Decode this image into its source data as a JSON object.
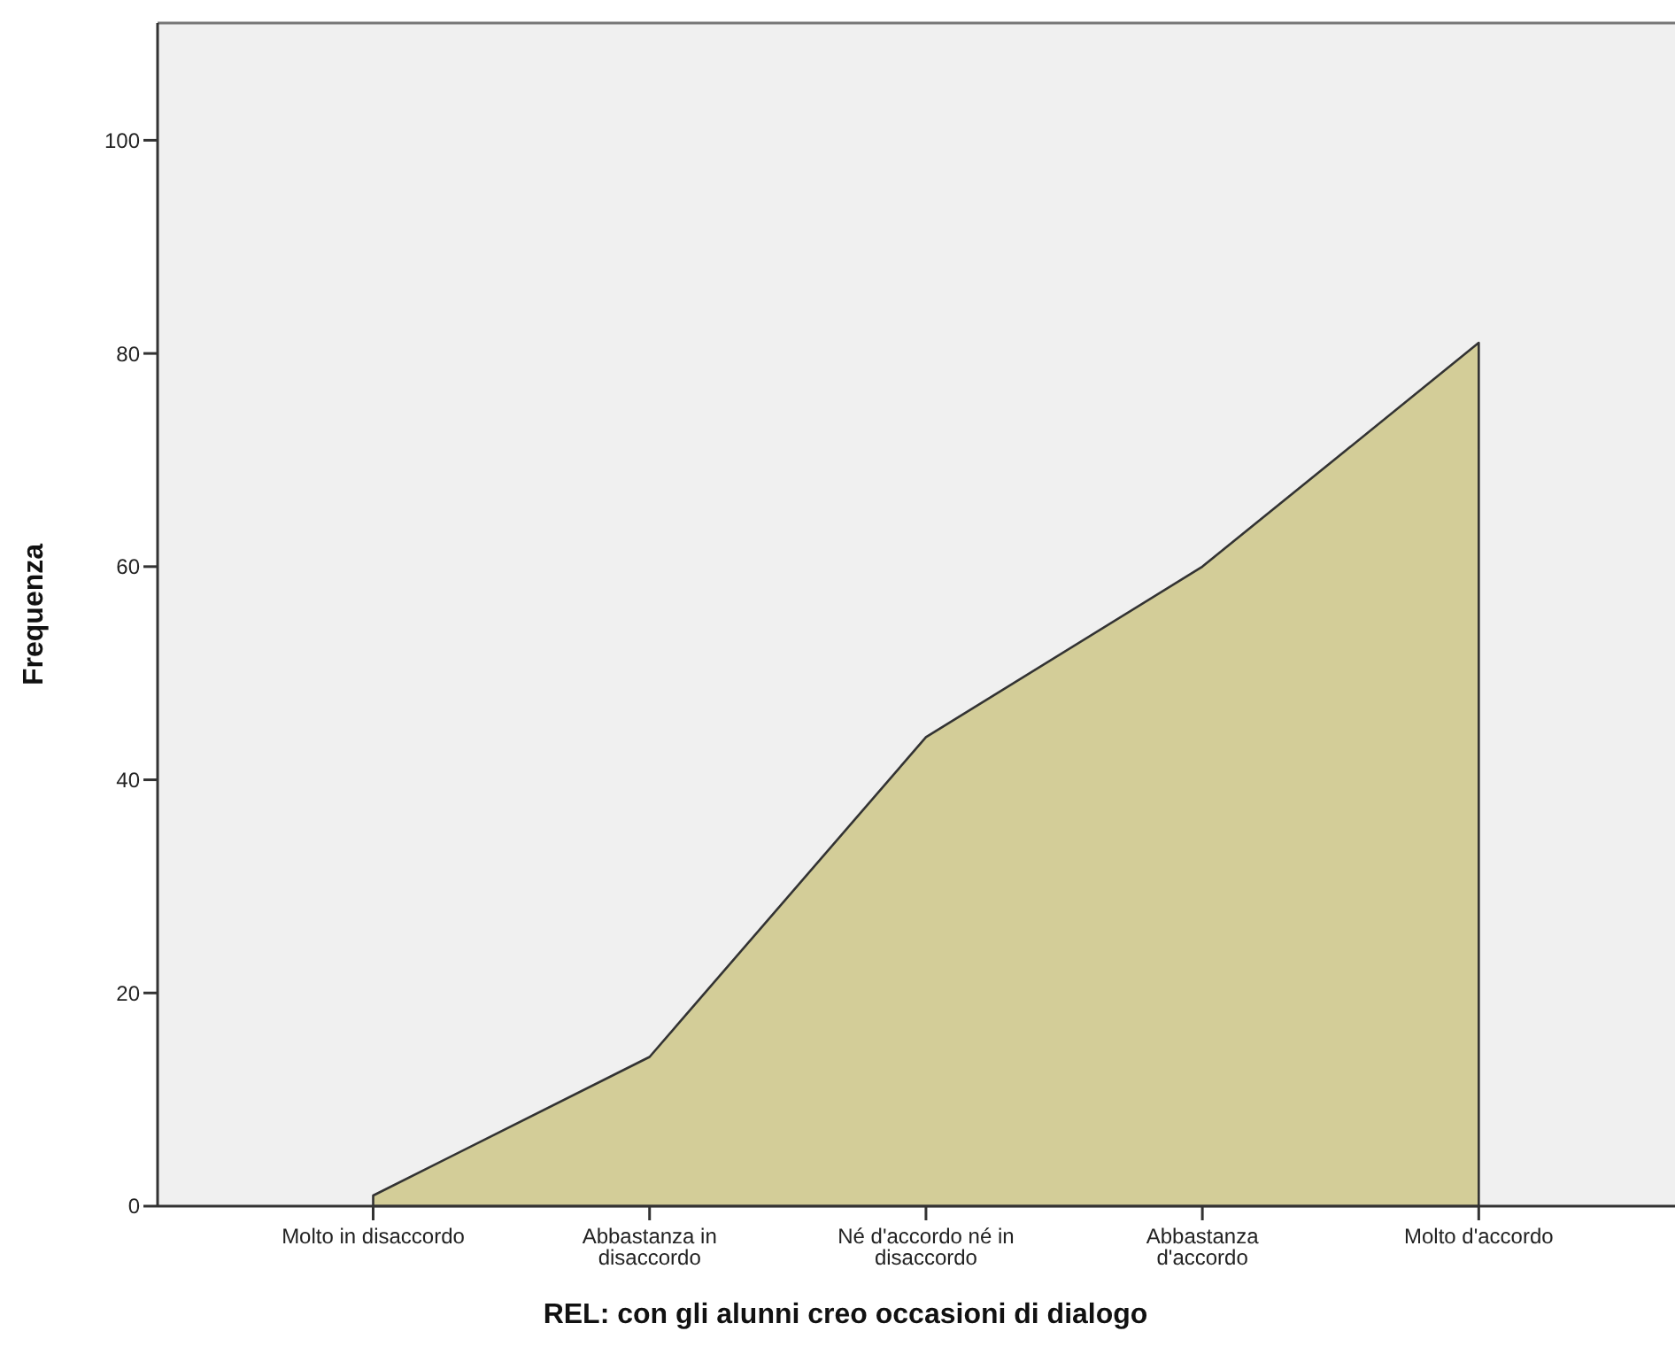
{
  "chart_data": {
    "type": "area",
    "xlabel": "REL: con gli alunni creo occasioni di dialogo",
    "ylabel": "Frequenza",
    "categories": [
      "Molto in disaccordo",
      "Abbastanza in disaccordo",
      "Né d'accordo né in disaccordo",
      "Abbastanza d'accordo",
      "Molto d'accordo"
    ],
    "values": [
      1,
      14,
      44,
      60,
      81
    ],
    "color": "#d3cd98",
    "ylim": [
      0,
      111
    ],
    "yticks": [
      0,
      20,
      40,
      60,
      80,
      100
    ]
  }
}
